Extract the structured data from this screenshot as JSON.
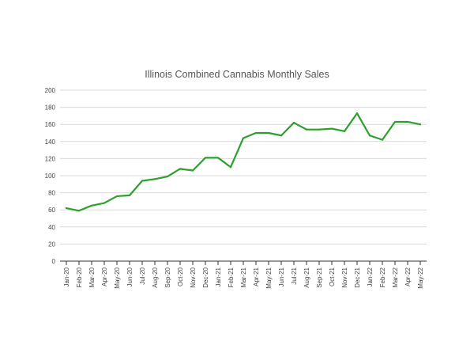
{
  "chart_data": {
    "type": "line",
    "title": "Illinois Combined Cannabis Monthly Sales",
    "xlabel": "",
    "ylabel": "",
    "ylim": [
      0,
      200
    ],
    "yticks": [
      0,
      20,
      40,
      60,
      80,
      100,
      120,
      140,
      160,
      180,
      200
    ],
    "grid": true,
    "legend": "none",
    "categories": [
      "Jan-20",
      "Feb-20",
      "Mar-20",
      "Apr-20",
      "May-20",
      "Jun-20",
      "Jul-20",
      "Aug-20",
      "Sep-20",
      "Oct-20",
      "Nov-20",
      "Dec-20",
      "Jan-21",
      "Feb-21",
      "Mar-21",
      "Apr-21",
      "May-21",
      "Jun-21",
      "Jul-21",
      "Aug-21",
      "Sep-21",
      "Oct-21",
      "Nov-21",
      "Dec-21",
      "Jan-22",
      "Feb-22",
      "Mar-22",
      "Apr-22",
      "May-22"
    ],
    "series": [
      {
        "name": "Sales",
        "color": "#2ca02c",
        "values": [
          62,
          59,
          65,
          68,
          76,
          77,
          94,
          96,
          99,
          108,
          106,
          121,
          121,
          110,
          144,
          150,
          150,
          147,
          162,
          154,
          154,
          155,
          152,
          173,
          147,
          142,
          163,
          163,
          160
        ]
      }
    ]
  }
}
